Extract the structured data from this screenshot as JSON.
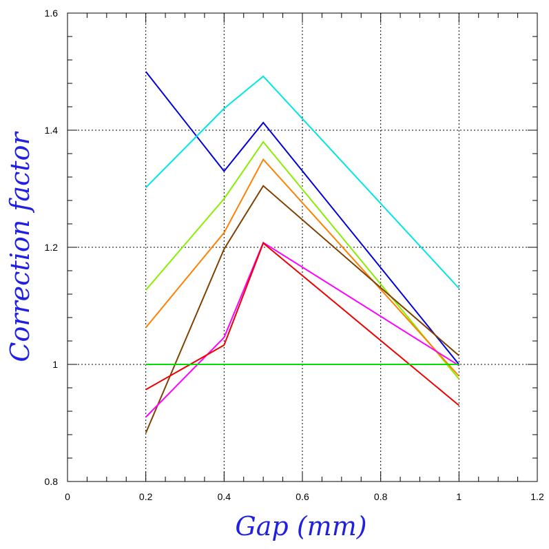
{
  "chart_data": {
    "type": "line",
    "title": "",
    "xlabel": "Gap (mm)",
    "ylabel": "Correction factor",
    "xlim": [
      0,
      1.2
    ],
    "ylim": [
      0.8,
      1.6
    ],
    "x_ticks": [
      "0",
      "0.2",
      "0.4",
      "0.6",
      "0.8",
      "1",
      "1.2"
    ],
    "y_ticks": [
      "0.8",
      "1",
      "1.2",
      "1.4",
      "1.6"
    ],
    "grid": "dotted at major ticks",
    "legend": "none",
    "x": [
      0.2,
      0.4,
      0.5,
      1.0
    ],
    "series": [
      {
        "color": "#0000dd",
        "values": [
          1.5,
          1.33,
          1.413,
          1.0
        ]
      },
      {
        "color": "#00e5e5",
        "values": [
          1.302,
          1.437,
          1.492,
          1.13
        ]
      },
      {
        "color": "#88ee00",
        "values": [
          1.127,
          1.283,
          1.38,
          0.975
        ]
      },
      {
        "color": "#ff8000",
        "values": [
          1.063,
          1.225,
          1.35,
          0.98
        ]
      },
      {
        "color": "#804000",
        "values": [
          0.883,
          1.197,
          1.305,
          1.015
        ]
      },
      {
        "color": "#ff00ff",
        "values": [
          0.91,
          1.046,
          1.208,
          0.998
        ]
      },
      {
        "color": "#ee0000",
        "values": [
          0.957,
          1.033,
          1.207,
          0.93
        ]
      },
      {
        "color": "#00dd00",
        "values": [
          1.0,
          1.0,
          1.0,
          1.0
        ]
      }
    ]
  }
}
